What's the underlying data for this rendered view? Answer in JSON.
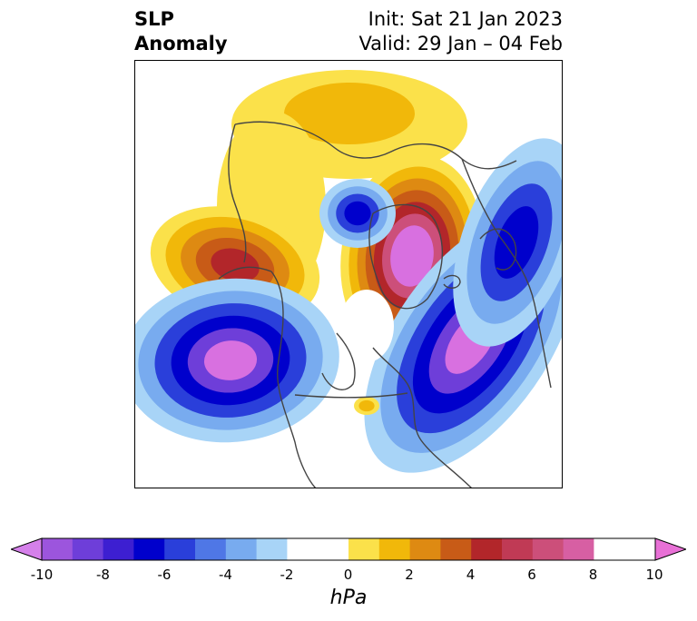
{
  "header": {
    "title_line1": "SLP",
    "title_line2": "Anomaly",
    "init_text": "Init: Sat 21 Jan 2023",
    "valid_text": "Valid: 29 Jan – 04 Feb"
  },
  "colorbar": {
    "unit_label": "hPa",
    "tick_labels": [
      "-10",
      "-8",
      "-6",
      "-4",
      "-2",
      "0",
      "2",
      "4",
      "6",
      "8",
      "10"
    ],
    "levels": [
      -10,
      -9,
      -8,
      -7,
      -6,
      -5,
      -4,
      -3,
      -2,
      -1,
      1,
      2,
      3,
      4,
      5,
      6,
      7,
      8,
      9,
      10
    ],
    "colors": {
      "neg_extend": "#d580ea",
      "neg": [
        "#9c55dd",
        "#6e3ed9",
        "#3d1fd1",
        "#0000cc",
        "#2a3fda",
        "#4f77e6",
        "#78abef",
        "#a8d4f7"
      ],
      "neutral": "#ffffff",
      "pos": [
        "#fbe14a",
        "#f1b80a",
        "#de8a12",
        "#c85b17",
        "#b2262a",
        "#c03a55",
        "#cc4f7a",
        "#d75fa3"
      ],
      "pos_extend": "#e870d6"
    }
  },
  "map": {
    "projection": "polar-stereographic",
    "anomaly_colors": {
      "yellow": "#fbe14a",
      "orange": "#f1b80a",
      "dark_orange": "#de8a12",
      "red": "#b2262a",
      "magenta": "#d870e0",
      "light_blue": "#a8d4f7",
      "mid_blue": "#78abef",
      "blue": "#2a3fda",
      "deep_blue": "#0000cc",
      "purple": "#6e3ed9",
      "coast": "#444444"
    }
  }
}
